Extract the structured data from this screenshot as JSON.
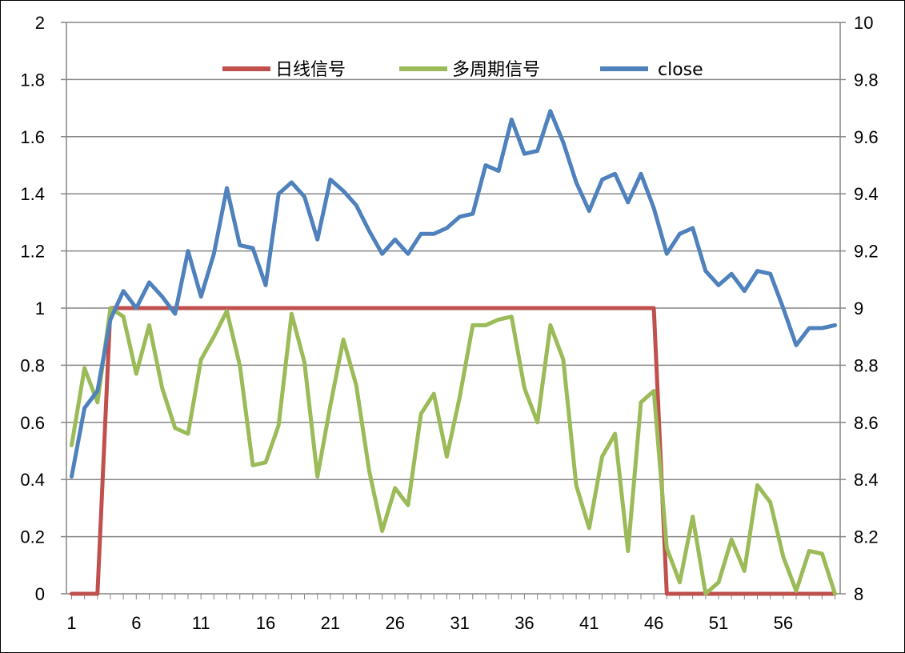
{
  "colors": {
    "signal_daily": "#C0504D",
    "signal_multi": "#9BBB59",
    "close": "#4F81BD",
    "grid": "#868686",
    "axis": "#868686",
    "frame": "#000000"
  },
  "legend": {
    "position": "top-center",
    "items": [
      {
        "label": "日线信号",
        "color_key": "signal_daily"
      },
      {
        "label": "多周期信号",
        "color_key": "signal_multi"
      },
      {
        "label": "close",
        "color_key": "close"
      }
    ]
  },
  "chart_data": {
    "type": "line",
    "grid": true,
    "x": [
      1,
      2,
      3,
      4,
      5,
      6,
      7,
      8,
      9,
      10,
      11,
      12,
      13,
      14,
      15,
      16,
      17,
      18,
      19,
      20,
      21,
      22,
      23,
      24,
      25,
      26,
      27,
      28,
      29,
      30,
      31,
      32,
      33,
      34,
      35,
      36,
      37,
      38,
      39,
      40,
      41,
      42,
      43,
      44,
      45,
      46,
      47,
      48,
      49,
      50,
      51,
      52,
      53,
      54,
      55,
      56,
      57,
      58,
      59,
      60
    ],
    "x_tick_labels": [
      "1",
      "6",
      "11",
      "16",
      "21",
      "26",
      "31",
      "36",
      "41",
      "46",
      "51",
      "56"
    ],
    "y_left": {
      "range": [
        0,
        2
      ],
      "ticks": [
        "0",
        "0.2",
        "0.4",
        "0.6",
        "0.8",
        "1",
        "1.2",
        "1.4",
        "1.6",
        "1.8",
        "2"
      ]
    },
    "y_right": {
      "range": [
        8,
        10
      ],
      "ticks": [
        "8",
        "8.2",
        "8.4",
        "8.6",
        "8.8",
        "9",
        "9.2",
        "9.4",
        "9.6",
        "9.8",
        "10"
      ]
    },
    "series": [
      {
        "name": "日线信号",
        "axis": "left",
        "color_key": "signal_daily",
        "values": [
          0,
          0,
          0,
          1,
          1,
          1,
          1,
          1,
          1,
          1,
          1,
          1,
          1,
          1,
          1,
          1,
          1,
          1,
          1,
          1,
          1,
          1,
          1,
          1,
          1,
          1,
          1,
          1,
          1,
          1,
          1,
          1,
          1,
          1,
          1,
          1,
          1,
          1,
          1,
          1,
          1,
          1,
          1,
          1,
          1,
          1,
          0,
          0,
          0,
          0,
          0,
          0,
          0,
          0,
          0,
          0,
          0,
          0,
          0,
          0
        ]
      },
      {
        "name": "多周期信号",
        "axis": "left",
        "color_key": "signal_multi",
        "values": [
          0.52,
          0.79,
          0.67,
          1.0,
          0.97,
          0.77,
          0.94,
          0.72,
          0.58,
          0.56,
          0.82,
          0.9,
          0.99,
          0.8,
          0.45,
          0.46,
          0.59,
          0.98,
          0.81,
          0.41,
          0.66,
          0.89,
          0.73,
          0.43,
          0.22,
          0.37,
          0.31,
          0.63,
          0.7,
          0.48,
          0.69,
          0.94,
          0.94,
          0.96,
          0.97,
          0.72,
          0.6,
          0.94,
          0.82,
          0.38,
          0.23,
          0.48,
          0.56,
          0.15,
          0.67,
          0.71,
          0.16,
          0.04,
          0.27,
          0.0,
          0.04,
          0.19,
          0.08,
          0.38,
          0.32,
          0.13,
          0.01,
          0.15,
          0.14,
          0.0
        ]
      },
      {
        "name": "close",
        "axis": "right",
        "color_key": "close",
        "values": [
          8.41,
          8.65,
          8.71,
          8.96,
          9.06,
          9.0,
          9.09,
          9.04,
          8.98,
          9.2,
          9.04,
          9.19,
          9.42,
          9.22,
          9.21,
          9.08,
          9.4,
          9.44,
          9.39,
          9.24,
          9.45,
          9.41,
          9.36,
          9.27,
          9.19,
          9.24,
          9.19,
          9.26,
          9.26,
          9.28,
          9.32,
          9.33,
          9.5,
          9.48,
          9.66,
          9.54,
          9.55,
          9.69,
          9.58,
          9.44,
          9.34,
          9.45,
          9.47,
          9.37,
          9.47,
          9.35,
          9.19,
          9.26,
          9.28,
          9.13,
          9.08,
          9.12,
          9.06,
          9.13,
          9.12,
          9.0,
          8.87,
          8.93,
          8.93,
          8.94
        ]
      }
    ]
  }
}
